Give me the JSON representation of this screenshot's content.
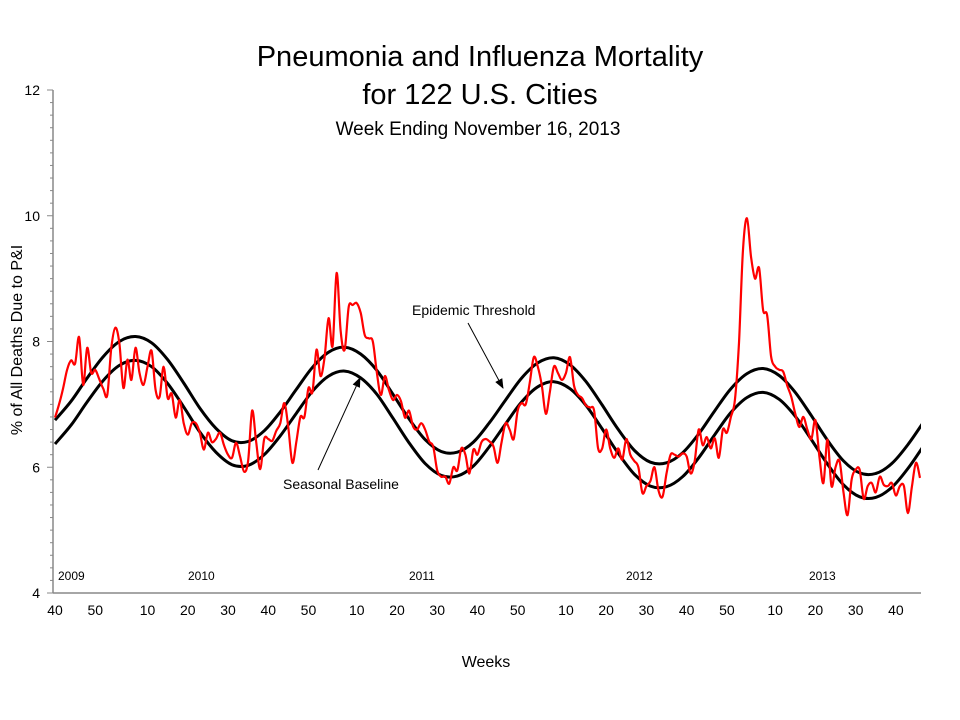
{
  "chart_data": {
    "type": "line",
    "title": "Pneumonia and Influenza Mortality",
    "title_line2": "for 122 U.S. Cities",
    "subtitle": "Week Ending  November 16, 2013",
    "xlabel": "Weeks",
    "ylabel": "% of All Deaths Due to P&I",
    "ylim": [
      4,
      12
    ],
    "y_ticks": [
      "4",
      "6",
      "8",
      "10",
      "12"
    ],
    "x_start": "2009 week 40",
    "x_end": "2013 week 46",
    "x_tick_labels": [
      "40",
      "50",
      "10",
      "20",
      "30",
      "40",
      "50",
      "10",
      "20",
      "30",
      "40",
      "50",
      "10",
      "20",
      "30",
      "40",
      "50",
      "10",
      "20",
      "30",
      "40"
    ],
    "year_labels": [
      "2009",
      "2010",
      "2011",
      "2012",
      "2013"
    ],
    "grid": false,
    "annotations": {
      "threshold": "Epidemic Threshold",
      "baseline": "Seasonal Baseline"
    },
    "colors": {
      "observed": "#ff0000",
      "baseline": "#000000",
      "threshold": "#000000"
    },
    "series": [
      {
        "key": "observed",
        "start": "2009 week 40",
        "step_weeks": 1,
        "values": [
          6.79,
          7.0,
          7.25,
          7.55,
          7.7,
          7.65,
          8.07,
          7.31,
          7.9,
          7.5,
          7.55,
          7.4,
          7.25,
          7.15,
          7.9,
          8.22,
          7.97,
          7.26,
          7.71,
          7.39,
          7.9,
          7.5,
          7.31,
          7.6,
          7.85,
          7.23,
          7.12,
          7.6,
          7.1,
          7.17,
          6.79,
          7.07,
          6.7,
          6.52,
          6.7,
          6.7,
          6.55,
          6.28,
          6.55,
          6.4,
          6.45,
          6.55,
          6.35,
          6.2,
          6.15,
          6.39,
          6.17,
          5.93,
          6.1,
          6.9,
          6.4,
          5.97,
          6.45,
          6.45,
          6.42,
          6.58,
          6.7,
          7.02,
          6.63,
          6.07,
          6.41,
          6.8,
          6.8,
          7.26,
          7.2,
          7.87,
          7.45,
          7.75,
          8.37,
          7.93,
          9.09,
          8.16,
          7.87,
          8.55,
          8.58,
          8.61,
          8.45,
          8.1,
          8.05,
          8.0,
          7.5,
          7.15,
          7.45,
          7.23,
          7.07,
          7.15,
          7.05,
          6.79,
          6.9,
          6.65,
          6.6,
          6.7,
          6.6,
          6.41,
          6.33,
          5.95,
          5.85,
          5.85,
          5.74,
          6.0,
          5.95,
          6.3,
          6.2,
          5.9,
          6.28,
          6.2,
          6.4,
          6.45,
          6.41,
          6.33,
          6.07,
          6.4,
          6.7,
          6.6,
          6.45,
          6.9,
          7.02,
          7.0,
          7.34,
          7.75,
          7.6,
          7.3,
          6.85,
          7.2,
          7.6,
          7.5,
          7.39,
          7.5,
          7.75,
          7.3,
          7.15,
          7.1,
          6.98,
          6.95,
          6.9,
          6.3,
          6.3,
          6.6,
          6.3,
          6.15,
          6.3,
          6.12,
          6.45,
          6.2,
          6.1,
          6.0,
          5.59,
          5.7,
          5.78,
          6.0,
          5.63,
          5.53,
          5.9,
          6.2,
          6.2,
          6.17,
          6.22,
          6.17,
          5.9,
          6.1,
          6.6,
          6.35,
          6.48,
          6.3,
          6.46,
          6.15,
          6.6,
          6.55,
          6.8,
          7.07,
          7.98,
          9.46,
          9.96,
          9.35,
          9.0,
          9.17,
          8.5,
          8.42,
          7.76,
          7.6,
          7.55,
          7.52,
          7.3,
          7.12,
          6.85,
          6.64,
          6.8,
          6.6,
          6.45,
          6.75,
          6.17,
          5.75,
          6.44,
          5.7,
          6.0,
          6.1,
          5.59,
          5.24,
          5.8,
          5.96,
          5.96,
          5.5,
          5.7,
          5.75,
          5.6,
          5.85,
          5.72,
          5.7,
          5.75,
          5.55,
          5.7,
          5.7,
          5.27,
          5.7,
          6.07,
          5.83
        ]
      },
      {
        "key": "baseline",
        "start": "2009 week 40",
        "step_weeks": 4,
        "values": [
          6.37,
          6.67,
          7.04,
          7.38,
          7.62,
          7.7,
          7.6,
          7.33,
          6.96,
          6.56,
          6.24,
          6.04,
          6.03,
          6.2,
          6.5,
          6.86,
          7.21,
          7.45,
          7.53,
          7.42,
          7.16,
          6.78,
          6.39,
          6.06,
          5.87,
          5.86,
          6.02,
          6.33,
          6.69,
          7.04,
          7.28,
          7.36,
          7.25,
          6.98,
          6.61,
          6.22,
          5.89,
          5.7,
          5.69,
          5.85,
          6.15,
          6.52,
          6.87,
          7.11,
          7.19,
          7.08,
          6.81,
          6.44,
          6.05,
          5.72,
          5.53,
          5.52,
          5.68,
          5.98,
          6.35
        ]
      },
      {
        "key": "threshold",
        "start": "2009 week 40",
        "step_weeks": 4,
        "values": [
          6.75,
          7.05,
          7.42,
          7.76,
          8.0,
          8.08,
          7.98,
          7.71,
          7.34,
          6.94,
          6.62,
          6.42,
          6.41,
          6.58,
          6.88,
          7.24,
          7.59,
          7.83,
          7.91,
          7.8,
          7.54,
          7.16,
          6.77,
          6.44,
          6.25,
          6.24,
          6.4,
          6.71,
          7.07,
          7.42,
          7.66,
          7.74,
          7.63,
          7.36,
          6.99,
          6.6,
          6.27,
          6.08,
          6.07,
          6.23,
          6.53,
          6.9,
          7.25,
          7.49,
          7.57,
          7.46,
          7.19,
          6.82,
          6.43,
          6.1,
          5.91,
          5.9,
          6.06,
          6.36,
          6.73
        ]
      }
    ]
  }
}
